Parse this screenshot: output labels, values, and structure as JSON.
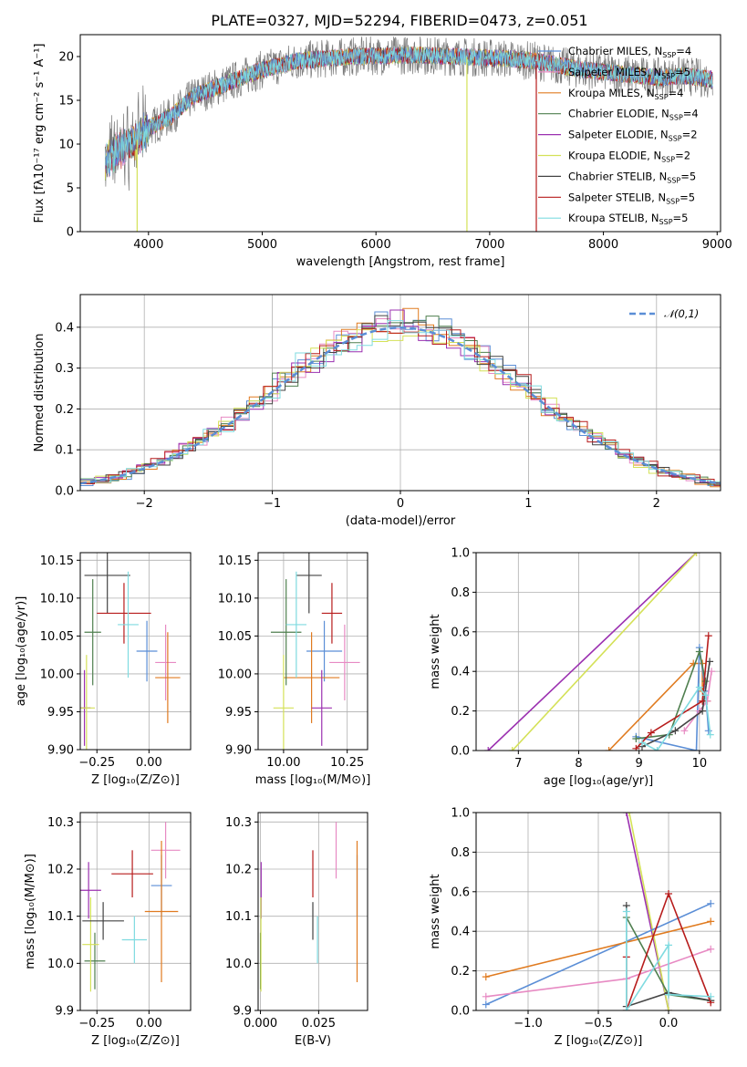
{
  "figure_title": "PLATE=0327, MJD=52294, FIBERID=0473, z=0.051",
  "colors": {
    "chabrier_miles": "#5b8ed6",
    "salpeter_miles": "#e78ac3",
    "kroupa_miles": "#e07b20",
    "chabrier_elodie": "#4f7f4f",
    "salpeter_elodie": "#9b30b0",
    "kroupa_elodie": "#d4e157",
    "chabrier_stelib": "#444444",
    "salpeter_stelib": "#b71c1c",
    "kroupa_stelib": "#7fdbe0"
  },
  "legend": [
    {
      "key": "chabrier_miles",
      "label": "Chabrier MILES, N",
      "sub": "SSP",
      "tail": "=4"
    },
    {
      "key": "salpeter_miles",
      "label": "Salpeter MILES, N",
      "sub": "SSP",
      "tail": "=5"
    },
    {
      "key": "kroupa_miles",
      "label": "Kroupa MILES, N",
      "sub": "SSP",
      "tail": "=4"
    },
    {
      "key": "chabrier_elodie",
      "label": "Chabrier ELODIE, N",
      "sub": "SSP",
      "tail": "=4"
    },
    {
      "key": "salpeter_elodie",
      "label": "Salpeter ELODIE, N",
      "sub": "SSP",
      "tail": "=2"
    },
    {
      "key": "kroupa_elodie",
      "label": "Kroupa ELODIE, N",
      "sub": "SSP",
      "tail": "=2"
    },
    {
      "key": "chabrier_stelib",
      "label": "Chabrier STELIB, N",
      "sub": "SSP",
      "tail": "=5"
    },
    {
      "key": "salpeter_stelib",
      "label": "Salpeter STELIB, N",
      "sub": "SSP",
      "tail": "=5"
    },
    {
      "key": "kroupa_stelib",
      "label": "Kroupa STELIB, N",
      "sub": "SSP",
      "tail": "=5"
    }
  ],
  "legend2": "𝒩(0,1)",
  "labels": {
    "p1_x": "wavelength [Angstrom, rest frame]",
    "p1_y": "Flux [fλ10⁻¹⁷ erg cm⁻² s⁻¹ A⁻¹]",
    "p2_x": "(data-model)/error",
    "p2_y": "Normed distribution",
    "p3_x": "Z [log₁₀(Z/Z⊙)]",
    "p3_y": "age  [log₁₀(age/yr)]",
    "p4_x": "mass [log₁₀(M/M⊙)]",
    "p5_x": "age  [log₁₀(age/yr)]",
    "p5_y": "mass weight",
    "p6_x": "Z [log₁₀(Z/Z⊙)]",
    "p6_y": "mass [log₁₀(M/M⊙)]",
    "p7_x": "E(B-V)",
    "p8_x": "Z [log₁₀(Z/Z⊙)]",
    "p8_y": "mass weight"
  },
  "chart_data": [
    {
      "id": "spectrum",
      "type": "line",
      "title": "PLATE=0327, MJD=52294, FIBERID=0473, z=0.051",
      "xlabel": "wavelength [Angstrom, rest frame]",
      "ylabel": "Flux [fλ10⁻¹⁷ erg cm⁻² s⁻¹ A⁻¹]",
      "xlim": [
        3400,
        9030
      ],
      "ylim": [
        0,
        22.5
      ],
      "xticks": [
        4000,
        5000,
        6000,
        7000,
        8000,
        9000
      ],
      "yticks": [
        0,
        5,
        10,
        15,
        20
      ],
      "continuum": [
        [
          3620,
          8
        ],
        [
          3700,
          9
        ],
        [
          3900,
          10.5
        ],
        [
          4000,
          11.8
        ],
        [
          4200,
          13.2
        ],
        [
          4400,
          15.5
        ],
        [
          4700,
          17
        ],
        [
          5000,
          18.5
        ],
        [
          5300,
          19.5
        ],
        [
          5800,
          20
        ],
        [
          6300,
          20.2
        ],
        [
          6700,
          20
        ],
        [
          7100,
          19.8
        ],
        [
          7400,
          19.5
        ],
        [
          7800,
          18.5
        ],
        [
          8200,
          18
        ],
        [
          8500,
          17.6
        ],
        [
          8700,
          17.8
        ],
        [
          8950,
          17.4
        ]
      ],
      "legend_position": "upper right"
    },
    {
      "id": "residuals",
      "type": "area",
      "xlabel": "(data-model)/error",
      "ylabel": "Normed distribution",
      "xlim": [
        -2.5,
        2.5
      ],
      "ylim": [
        0,
        0.48
      ],
      "xticks": [
        -2,
        -1,
        0,
        1,
        2
      ],
      "yticks": [
        0.0,
        0.1,
        0.2,
        0.3,
        0.4
      ],
      "series": [
        {
          "name": "𝒩(0,1)",
          "function": "normal pdf, mean 0, sigma 1"
        }
      ],
      "legend_position": "upper right"
    },
    {
      "id": "Z_vs_age",
      "type": "scatter",
      "xlabel": "Z [log₁₀(Z/Z⊙)]",
      "ylabel": "age  [log₁₀(age/yr)]",
      "xlim": [
        -0.33,
        0.2
      ],
      "ylim": [
        9.9,
        10.16
      ],
      "xticks": [
        -0.25,
        0.0
      ],
      "yticks": [
        9.9,
        9.95,
        10.0,
        10.05,
        10.1,
        10.15
      ],
      "points": [
        {
          "key": "chabrier_miles",
          "x": -0.01,
          "y": 10.03,
          "ex": 0.05,
          "ey": 0.04
        },
        {
          "key": "salpeter_miles",
          "x": 0.08,
          "y": 10.015,
          "ex": 0.05,
          "ey": 0.05
        },
        {
          "key": "kroupa_miles",
          "x": 0.09,
          "y": 9.995,
          "ex": 0.06,
          "ey": 0.06
        },
        {
          "key": "chabrier_elodie",
          "x": -0.27,
          "y": 10.055,
          "ex": 0.04,
          "ey": 0.07
        },
        {
          "key": "salpeter_elodie",
          "x": -0.31,
          "y": 9.955,
          "ex": 0.03,
          "ey": 0.05
        },
        {
          "key": "kroupa_elodie",
          "x": -0.3,
          "y": 9.955,
          "ex": 0.04,
          "ey": 0.07
        },
        {
          "key": "chabrier_stelib",
          "x": -0.2,
          "y": 10.13,
          "ex": 0.11,
          "ey": 0.05
        },
        {
          "key": "salpeter_stelib",
          "x": -0.12,
          "y": 10.08,
          "ex": 0.13,
          "ey": 0.04
        },
        {
          "key": "kroupa_stelib",
          "x": -0.1,
          "y": 10.065,
          "ex": 0.05,
          "ey": 0.07
        }
      ]
    },
    {
      "id": "mass_vs_age",
      "type": "scatter",
      "xlabel": "mass [log₁₀(M/M⊙)]",
      "xlim": [
        9.9,
        10.33
      ],
      "ylim": [
        9.9,
        10.16
      ],
      "xticks": [
        10.0,
        10.25
      ],
      "yticks": [
        9.9,
        9.95,
        10.0,
        10.05,
        10.1,
        10.15
      ],
      "points": [
        {
          "key": "chabrier_miles",
          "x": 10.16,
          "y": 10.03,
          "ex": 0.07,
          "ey": 0.04
        },
        {
          "key": "salpeter_miles",
          "x": 10.24,
          "y": 10.015,
          "ex": 0.06,
          "ey": 0.05
        },
        {
          "key": "kroupa_miles",
          "x": 10.11,
          "y": 9.995,
          "ex": 0.11,
          "ey": 0.06
        },
        {
          "key": "chabrier_elodie",
          "x": 10.01,
          "y": 10.055,
          "ex": 0.06,
          "ey": 0.07
        },
        {
          "key": "salpeter_elodie",
          "x": 10.15,
          "y": 9.955,
          "ex": 0.04,
          "ey": 0.05
        },
        {
          "key": "kroupa_elodie",
          "x": 10.0,
          "y": 9.955,
          "ex": 0.04,
          "ey": 0.07
        },
        {
          "key": "chabrier_stelib",
          "x": 10.1,
          "y": 10.13,
          "ex": 0.05,
          "ey": 0.05
        },
        {
          "key": "salpeter_stelib",
          "x": 10.19,
          "y": 10.08,
          "ex": 0.04,
          "ey": 0.04
        },
        {
          "key": "kroupa_stelib",
          "x": 10.05,
          "y": 10.065,
          "ex": 0.04,
          "ey": 0.07
        }
      ]
    },
    {
      "id": "age_vs_weight",
      "type": "line",
      "xlabel": "age  [log₁₀(age/yr)]",
      "ylabel": "mass weight",
      "xlim": [
        6.3,
        10.35
      ],
      "ylim": [
        0,
        1.0
      ],
      "xticks": [
        7,
        8,
        9,
        10
      ],
      "yticks": [
        0.0,
        0.2,
        0.4,
        0.6,
        0.8,
        1.0
      ],
      "series": [
        {
          "key": "salpeter_elodie",
          "points": [
            [
              6.5,
              0.0
            ],
            [
              9.95,
              1.0
            ]
          ]
        },
        {
          "key": "kroupa_elodie",
          "points": [
            [
              6.9,
              0.0
            ],
            [
              9.95,
              1.0
            ]
          ]
        },
        {
          "key": "kroupa_miles",
          "points": [
            [
              8.5,
              0.0
            ],
            [
              9.9,
              0.44
            ],
            [
              10.05,
              0.44
            ],
            [
              10.05,
              0.3
            ],
            [
              10.13,
              0.25
            ]
          ]
        },
        {
          "key": "chabrier_miles",
          "points": [
            [
              8.95,
              0.07
            ],
            [
              9.95,
              0.0
            ],
            [
              10.0,
              0.52
            ],
            [
              10.1,
              0.3
            ],
            [
              10.15,
              0.1
            ]
          ]
        },
        {
          "key": "salpeter_miles",
          "points": [
            [
              9.75,
              0.1
            ],
            [
              10.0,
              0.2
            ],
            [
              10.13,
              0.25
            ],
            [
              10.2,
              0.4
            ]
          ]
        },
        {
          "key": "chabrier_elodie",
          "points": [
            [
              8.95,
              0.06
            ],
            [
              9.5,
              0.08
            ],
            [
              10.0,
              0.5
            ],
            [
              10.1,
              0.35
            ]
          ]
        },
        {
          "key": "chabrier_stelib",
          "points": [
            [
              9.05,
              0.02
            ],
            [
              9.6,
              0.1
            ],
            [
              10.05,
              0.2
            ],
            [
              10.17,
              0.45
            ]
          ]
        },
        {
          "key": "salpeter_stelib",
          "points": [
            [
              8.95,
              0.01
            ],
            [
              9.2,
              0.09
            ],
            [
              10.05,
              0.25
            ],
            [
              10.15,
              0.58
            ]
          ]
        },
        {
          "key": "kroupa_stelib",
          "points": [
            [
              9.05,
              0.04
            ],
            [
              9.3,
              0.0
            ],
            [
              10.0,
              0.32
            ],
            [
              10.1,
              0.28
            ],
            [
              10.18,
              0.08
            ]
          ]
        }
      ]
    },
    {
      "id": "Z_vs_mass",
      "type": "scatter",
      "xlabel": "Z [log₁₀(Z/Z⊙)]",
      "ylabel": "mass [log₁₀(M/M⊙)]",
      "xlim": [
        -0.33,
        0.2
      ],
      "ylim": [
        9.9,
        10.32
      ],
      "xticks": [
        -0.25,
        0.0
      ],
      "yticks": [
        9.9,
        10.0,
        10.1,
        10.2,
        10.3
      ],
      "points": [
        {
          "key": "chabrier_miles",
          "x": 0.06,
          "y": 10.165,
          "ex": 0.05,
          "ey": 0.065
        },
        {
          "key": "salpeter_miles",
          "x": 0.08,
          "y": 10.24,
          "ex": 0.07,
          "ey": 0.06
        },
        {
          "key": "kroupa_miles",
          "x": 0.06,
          "y": 10.11,
          "ex": 0.08,
          "ey": 0.15
        },
        {
          "key": "chabrier_elodie",
          "x": -0.26,
          "y": 10.005,
          "ex": 0.05,
          "ey": 0.06
        },
        {
          "key": "salpeter_elodie",
          "x": -0.29,
          "y": 10.155,
          "ex": 0.06,
          "ey": 0.06
        },
        {
          "key": "kroupa_elodie",
          "x": -0.28,
          "y": 10.04,
          "ex": 0.04,
          "ey": 0.1
        },
        {
          "key": "chabrier_stelib",
          "x": -0.22,
          "y": 10.09,
          "ex": 0.1,
          "ey": 0.04
        },
        {
          "key": "salpeter_stelib",
          "x": -0.08,
          "y": 10.19,
          "ex": 0.1,
          "ey": 0.05
        },
        {
          "key": "kroupa_stelib",
          "x": -0.07,
          "y": 10.05,
          "ex": 0.06,
          "ey": 0.05
        }
      ]
    },
    {
      "id": "ebv_vs_mass",
      "type": "scatter",
      "xlabel": "E(B-V)",
      "xlim": [
        -0.001,
        0.046
      ],
      "ylim": [
        9.9,
        10.32
      ],
      "xticks": [
        0.0,
        0.025
      ],
      "xtick_labels": [
        "0.000",
        "0.025"
      ],
      "yticks": [
        9.9,
        10.0,
        10.1,
        10.2,
        10.3
      ],
      "points": [
        {
          "key": "chabrier_miles",
          "x": 0.0415,
          "y": 10.165,
          "ey": 0.065
        },
        {
          "key": "salpeter_miles",
          "x": 0.0325,
          "y": 10.24,
          "ey": 0.06
        },
        {
          "key": "kroupa_miles",
          "x": 0.0415,
          "y": 10.11,
          "ey": 0.15
        },
        {
          "key": "chabrier_elodie",
          "x": 0.0,
          "y": 10.005,
          "ey": 0.06
        },
        {
          "key": "salpeter_elodie",
          "x": 0.0003,
          "y": 10.155,
          "ey": 0.06
        },
        {
          "key": "kroupa_elodie",
          "x": 0.0002,
          "y": 10.04,
          "ey": 0.1
        },
        {
          "key": "chabrier_stelib",
          "x": 0.0225,
          "y": 10.09,
          "ey": 0.04
        },
        {
          "key": "salpeter_stelib",
          "x": 0.0225,
          "y": 10.19,
          "ey": 0.05
        },
        {
          "key": "kroupa_stelib",
          "x": 0.0245,
          "y": 10.05,
          "ey": 0.05
        }
      ]
    },
    {
      "id": "Z_vs_weight",
      "type": "line",
      "xlabel": "Z [log₁₀(Z/Z⊙)]",
      "ylabel": "mass weight",
      "xlim": [
        -1.37,
        0.37
      ],
      "ylim": [
        0,
        1.0
      ],
      "xticks": [
        -1.0,
        -0.5,
        0.0
      ],
      "yticks": [
        0.0,
        0.2,
        0.4,
        0.6,
        0.8,
        1.0
      ],
      "series": [
        {
          "key": "salpeter_elodie",
          "points": [
            [
              -0.3,
              1.0
            ],
            [
              0.0,
              0.0
            ]
          ]
        },
        {
          "key": "kroupa_elodie",
          "points": [
            [
              -0.28,
              1.0
            ],
            [
              0.0,
              0.0
            ]
          ]
        },
        {
          "key": "chabrier_miles",
          "points": [
            [
              -1.3,
              0.03
            ],
            [
              0.3,
              0.54
            ]
          ]
        },
        {
          "key": "kroupa_miles",
          "points": [
            [
              -1.3,
              0.17
            ],
            [
              0.3,
              0.45
            ]
          ]
        },
        {
          "key": "salpeter_miles",
          "points": [
            [
              -1.3,
              0.07
            ],
            [
              -0.3,
              0.16
            ],
            [
              0.3,
              0.31
            ]
          ]
        },
        {
          "key": "chabrier_elodie",
          "points": [
            [
              -0.3,
              0.47
            ],
            [
              0.0,
              0.08
            ],
            [
              0.3,
              0.05
            ]
          ]
        },
        {
          "key": "chabrier_stelib",
          "points": [
            [
              -0.3,
              0.53
            ],
            [
              -0.3,
              0.02
            ],
            [
              0.0,
              0.09
            ],
            [
              0.3,
              0.05
            ]
          ]
        },
        {
          "key": "salpeter_stelib",
          "points": [
            [
              -0.3,
              0.27
            ],
            [
              -0.3,
              0.0
            ],
            [
              0.0,
              0.59
            ],
            [
              0.3,
              0.04
            ]
          ]
        },
        {
          "key": "kroupa_stelib",
          "points": [
            [
              -0.3,
              0.5
            ],
            [
              -0.3,
              0.0
            ],
            [
              0.0,
              0.33
            ],
            [
              0.0,
              0.08
            ],
            [
              0.3,
              0.07
            ]
          ]
        }
      ]
    }
  ]
}
